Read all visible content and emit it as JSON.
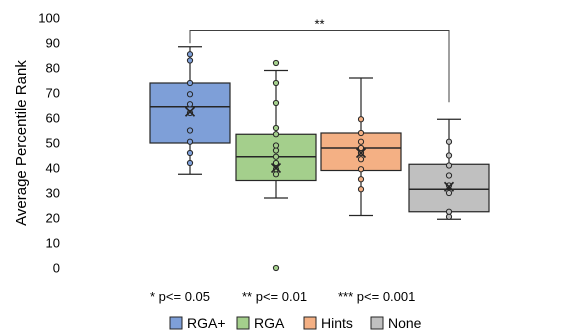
{
  "chart_data": {
    "type": "box",
    "ylabel": "Average Percentile Rank",
    "xlabel": "",
    "ylim": [
      0,
      100
    ],
    "yticks": [
      0,
      10,
      20,
      30,
      40,
      50,
      60,
      70,
      80,
      90,
      100
    ],
    "grid": false,
    "legend_position": "bottom",
    "significance_bracket": {
      "from_group": "RGA+",
      "to_group": "None",
      "label": "**",
      "level": 95
    },
    "significance_notes": [
      "* p<= 0.05",
      "** p<= 0.01",
      "*** p<= 0.001"
    ],
    "series": [
      {
        "name": "RGA+",
        "color": "#7e9fd8",
        "whisker_low": 37.5,
        "q1": 50,
        "median": 64.5,
        "q3": 74,
        "whisker_high": 88.5,
        "mean": 62.5,
        "points": [
          42,
          46,
          50.5,
          55,
          62,
          65.5,
          69.5,
          74,
          83,
          85.5
        ],
        "outliers": []
      },
      {
        "name": "RGA",
        "color": "#a4cf8c",
        "whisker_low": 28,
        "q1": 35,
        "median": 44.5,
        "q3": 53.5,
        "whisker_high": 79,
        "mean": 40,
        "points": [
          37.5,
          39.5,
          42,
          44.5,
          47,
          49,
          53.5,
          56,
          66,
          74,
          82
        ],
        "outliers": [
          0
        ]
      },
      {
        "name": "Hints",
        "color": "#f4b084",
        "whisker_low": 21,
        "q1": 39,
        "median": 48,
        "q3": 54,
        "whisker_high": 76,
        "mean": 46,
        "points": [
          31.5,
          35.5,
          39.5,
          43.5,
          46,
          48,
          50.5,
          54,
          59.5
        ],
        "outliers": []
      },
      {
        "name": "None",
        "color": "#c0c0c0",
        "whisker_low": 19.5,
        "q1": 22.5,
        "median": 31.5,
        "q3": 41.5,
        "whisker_high": 59.5,
        "mean": 32.5,
        "points": [
          20.5,
          22.5,
          30,
          33,
          37,
          41,
          45,
          50.5
        ],
        "outliers": []
      }
    ]
  }
}
